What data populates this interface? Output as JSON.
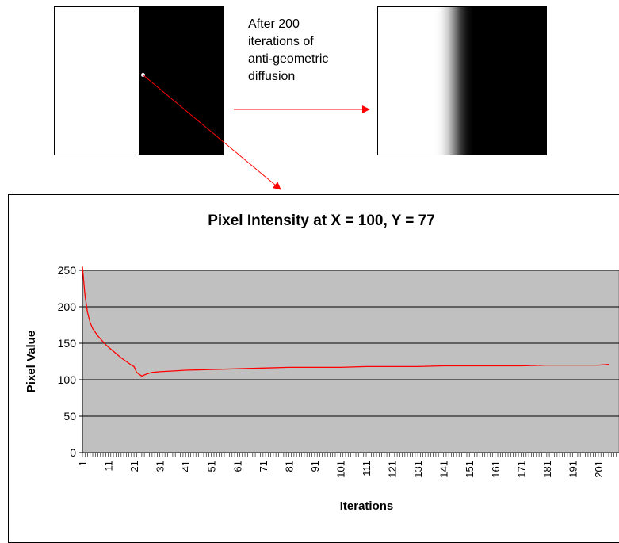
{
  "caption": {
    "line1": "After 200",
    "line2": "iterations of",
    "line3": "anti-geometric",
    "line4": "diffusion"
  },
  "colors": {
    "arrow": "#ff0000",
    "plot_bg": "#c0c0c0",
    "series": "#ff0000"
  },
  "chart_data": {
    "type": "line",
    "title": "Pixel Intensity at X = 100, Y = 77",
    "xlabel": "Iterations",
    "ylabel": "Pixel Value",
    "ylim": [
      0,
      250
    ],
    "yticks": [
      0,
      50,
      100,
      150,
      200,
      250
    ],
    "xtick_labels": [
      "1",
      "11",
      "21",
      "31",
      "41",
      "51",
      "61",
      "71",
      "81",
      "91",
      "101",
      "111",
      "121",
      "131",
      "141",
      "151",
      "161",
      "171",
      "181",
      "191",
      "201"
    ],
    "grid": "horizontal",
    "series": [
      {
        "x": [
          1,
          2,
          3,
          4,
          5,
          6,
          7,
          8,
          9,
          10,
          12,
          14,
          16,
          18,
          20,
          21,
          22,
          24,
          26,
          28,
          31,
          36,
          41,
          51,
          61,
          71,
          81,
          91,
          101,
          111,
          121,
          131,
          141,
          151,
          161,
          171,
          181,
          191,
          201,
          205
        ],
        "values": [
          255,
          215,
          192,
          178,
          170,
          165,
          160,
          156,
          152,
          148,
          142,
          136,
          130,
          125,
          120,
          118,
          110,
          105,
          108,
          110,
          111,
          112,
          113,
          114,
          115,
          116,
          117,
          117,
          117,
          118,
          118,
          118,
          119,
          119,
          119,
          119,
          120,
          120,
          120,
          121
        ]
      }
    ]
  }
}
